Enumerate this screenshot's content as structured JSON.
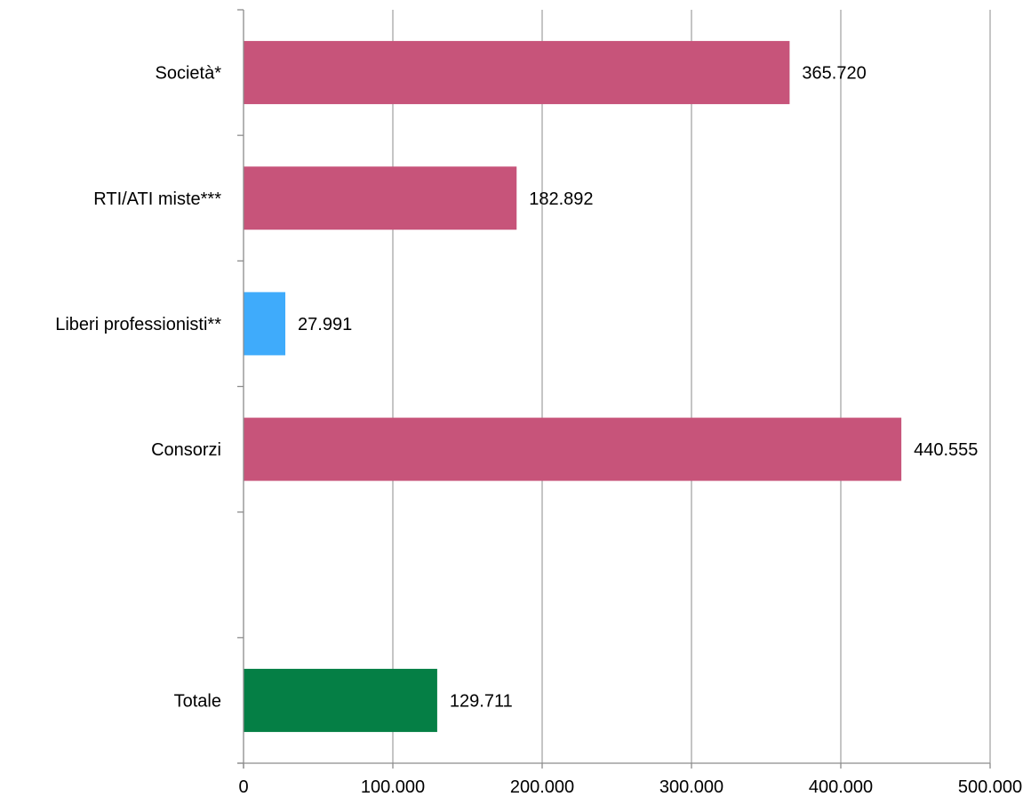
{
  "chart_data": {
    "type": "bar",
    "orientation": "horizontal",
    "title": "",
    "xlabel": "",
    "ylabel": "",
    "xlim": [
      0,
      500000
    ],
    "x_ticks": [
      0,
      100000,
      200000,
      300000,
      400000,
      500000
    ],
    "x_tick_labels": [
      "0",
      "100.000",
      "200.000",
      "300.000",
      "400.000",
      "500.000"
    ],
    "grid": "vertical",
    "legend": "none",
    "categories": [
      "Società*",
      "RTI/ATI miste***",
      "Liberi professionisti**",
      "Consorzi",
      "",
      "Totale"
    ],
    "values": [
      365720,
      182892,
      27991,
      440555,
      null,
      129711
    ],
    "data_labels": [
      "365.720",
      "182.892",
      "27.991",
      "440.555",
      "",
      "129.711"
    ],
    "colors": [
      "#c7547a",
      "#c7547a",
      "#3fabfb",
      "#c7547a",
      "",
      "#057f45"
    ]
  }
}
